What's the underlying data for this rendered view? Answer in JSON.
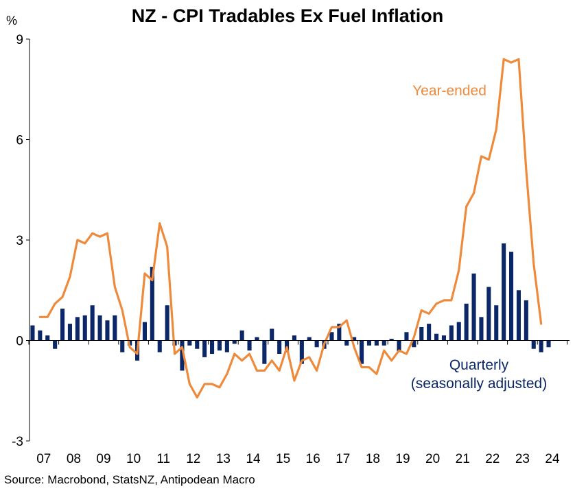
{
  "title": "NZ - CPI Tradables Ex Fuel Inflation",
  "unit": "%",
  "source": "Source: Macrobond, StatsNZ, Antipodean Macro",
  "colors": {
    "line": "#ee8a3c",
    "bars": "#0c2767",
    "axis": "#000000"
  },
  "chart_data": {
    "type": "bar+line",
    "ylim": [
      -3,
      9
    ],
    "yticks": [
      -3,
      0,
      3,
      6,
      9
    ],
    "x_range": [
      "2007Q1",
      "2024Q3"
    ],
    "x_tick_labels": [
      "07",
      "08",
      "09",
      "10",
      "11",
      "12",
      "13",
      "14",
      "15",
      "16",
      "17",
      "18",
      "19",
      "20",
      "21",
      "22",
      "23",
      "24"
    ],
    "grid": false,
    "series": [
      {
        "name": "Year-ended",
        "type": "line",
        "label_lines": [
          "Year-ended"
        ],
        "x_start": "2007Q2",
        "values": [
          0.7,
          0.7,
          1.1,
          1.3,
          1.9,
          3.0,
          2.9,
          3.2,
          3.1,
          3.2,
          1.6,
          0.9,
          -0.2,
          -0.4,
          2.0,
          1.8,
          3.5,
          2.8,
          -0.4,
          -0.2,
          -1.3,
          -1.7,
          -1.3,
          -1.3,
          -1.4,
          -1.0,
          -0.4,
          -0.6,
          -0.4,
          -0.9,
          -0.9,
          -0.6,
          -0.9,
          -0.2,
          -1.2,
          -0.6,
          -0.5,
          -0.9,
          -0.1,
          0.4,
          0.4,
          0.6,
          -0.2,
          -0.8,
          -0.8,
          -1.0,
          -0.3,
          -0.6,
          -0.3,
          -0.4,
          0.1,
          0.9,
          0.8,
          1.1,
          1.2,
          1.2,
          2.1,
          4.0,
          4.4,
          5.5,
          5.4,
          6.3,
          8.4,
          8.3,
          8.4,
          5.1,
          2.3,
          0.5
        ]
      },
      {
        "name": "Quarterly (seasonally adjusted)",
        "type": "bar",
        "label_lines": [
          "Quarterly",
          "(seasonally adjusted)"
        ],
        "x_start": "2007Q1",
        "values": [
          0.45,
          0.3,
          0.15,
          -0.25,
          0.95,
          0.5,
          0.7,
          0.75,
          1.05,
          0.75,
          0.6,
          0.75,
          -0.35,
          -0.15,
          -0.6,
          0.55,
          2.2,
          -0.35,
          1.05,
          -0.15,
          -0.9,
          -0.15,
          -0.25,
          -0.5,
          -0.4,
          -0.3,
          -0.35,
          -0.1,
          0.3,
          -0.3,
          0.1,
          -0.7,
          0.35,
          -0.4,
          -0.35,
          0.15,
          -0.7,
          0.1,
          -0.2,
          -0.25,
          0.25,
          0.5,
          -0.15,
          0.1,
          -0.7,
          -0.15,
          -0.15,
          -0.15,
          0.05,
          -0.35,
          0.25,
          -0.2,
          0.4,
          0.5,
          0.2,
          0.15,
          0.45,
          0.55,
          1.1,
          2.0,
          0.7,
          1.6,
          1.05,
          2.9,
          2.65,
          1.5,
          1.2,
          -0.25,
          -0.35,
          -0.2
        ]
      }
    ]
  }
}
